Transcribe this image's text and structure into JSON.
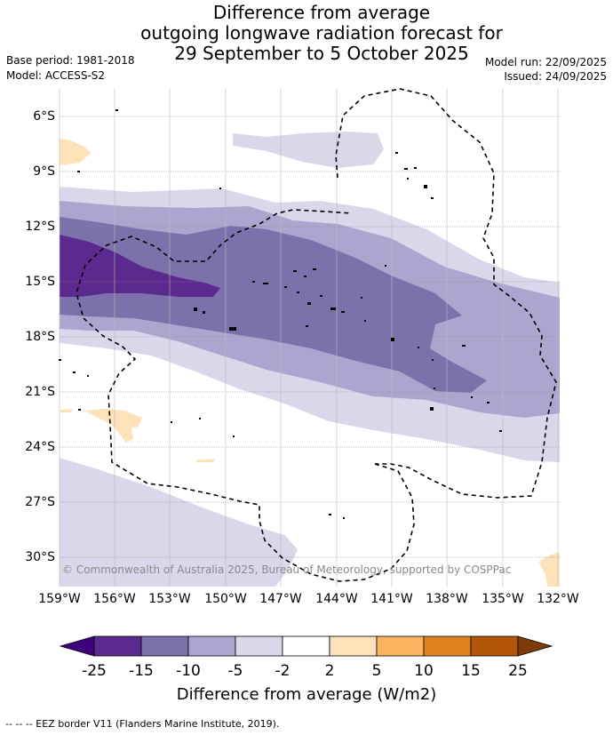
{
  "title": {
    "line1": "Difference from average",
    "line2": "outgoing longwave radiation forecast for",
    "line3": "29 September to 5 October 2025"
  },
  "base_period": "Base period: 1981-2018",
  "model": "Model: ACCESS-S2",
  "model_run": "Model run: 22/09/2025",
  "issued": "Issued: 24/09/2025",
  "lat_labels": [
    "6°S",
    "9°S",
    "12°S",
    "15°S",
    "18°S",
    "21°S",
    "24°S",
    "27°S",
    "30°S"
  ],
  "lon_labels": [
    "159°W",
    "156°W",
    "153°W",
    "150°W",
    "147°W",
    "144°W",
    "141°W",
    "138°W",
    "135°W",
    "132°W"
  ],
  "copyright": "© Commonwealth of Australia 2025, Bureau of Meteorology, supported by COSPPac",
  "colorbar": {
    "ticks": [
      "-25",
      "-15",
      "-10",
      "-5",
      "-2",
      "2",
      "5",
      "10",
      "15",
      "25"
    ],
    "colors": [
      "#3f007d",
      "#5b2a8e",
      "#7d71ab",
      "#aba6cf",
      "#d8d8ea",
      "#ffffff",
      "#fde1b9",
      "#fdb45e",
      "#e0821f",
      "#b25708",
      "#7f3b08"
    ],
    "label": "Difference from average (W/m2)"
  },
  "footer": "--  --  -- EEZ border V11 (Flanders Marine Institute, 2019)."
}
